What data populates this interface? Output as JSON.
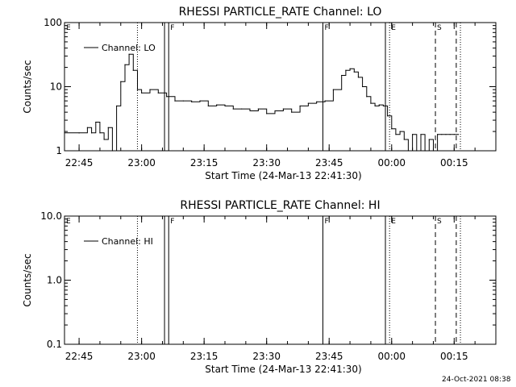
{
  "footer_date": "24-Oct-2021 08:38",
  "chart_data": [
    {
      "type": "line",
      "title": "RHESSI PARTICLE_RATE Channel: LO",
      "xlabel": "Start Time (24-Mar-13 22:41:30)",
      "ylabel": "Counts/sec",
      "yscale": "log",
      "ylim": [
        1,
        100
      ],
      "yticks": [
        "1",
        "10",
        "100"
      ],
      "xlim": [
        "22:41:30",
        "00:25:00"
      ],
      "xticks": [
        "22:45",
        "23:00",
        "23:15",
        "23:30",
        "23:45",
        "00:00",
        "00:15"
      ],
      "legend": {
        "label": "Channel: LO",
        "position": "top-left"
      },
      "flag_lines": [
        {
          "time": "22:41:30",
          "label": "E",
          "style": "solid"
        },
        {
          "time": "22:59:00",
          "label": "",
          "style": "dotted"
        },
        {
          "time": "23:05:30",
          "label": "",
          "style": "solid"
        },
        {
          "time": "23:06:30",
          "label": "F",
          "style": "solid"
        },
        {
          "time": "23:43:30",
          "label": "F",
          "style": "solid"
        },
        {
          "time": "23:58:30",
          "label": "",
          "style": "solid"
        },
        {
          "time": "23:59:30",
          "label": "E",
          "style": "dotted"
        },
        {
          "time": "00:10:30",
          "label": "S",
          "style": "dashed"
        },
        {
          "time": "00:15:30",
          "label": "",
          "style": "dashed"
        },
        {
          "time": "00:16:30",
          "label": "",
          "style": "dotted"
        }
      ],
      "series": [
        {
          "x": [
            "22:41:30",
            "22:45:00",
            "22:47:00",
            "22:48:00",
            "22:49:00",
            "22:50:00",
            "22:51:00",
            "22:52:00",
            "22:53:00",
            "22:54:00",
            "22:55:00",
            "22:56:00",
            "22:57:00",
            "22:58:00",
            "22:59:00",
            "23:00:00",
            "23:02:00",
            "23:04:00",
            "23:06:00",
            "23:08:00",
            "23:10:00",
            "23:12:00",
            "23:14:00",
            "23:16:00",
            "23:18:00",
            "23:20:00",
            "23:22:00",
            "23:24:00",
            "23:26:00",
            "23:28:00",
            "23:30:00",
            "23:32:00",
            "23:34:00",
            "23:36:00",
            "23:38:00",
            "23:40:00",
            "23:42:00",
            "23:44:00",
            "23:46:00",
            "23:48:00",
            "23:49:00",
            "23:50:00",
            "23:51:00",
            "23:52:00",
            "23:53:00",
            "23:54:00",
            "23:55:00",
            "23:56:00",
            "23:57:00",
            "23:58:00",
            "23:59:00",
            "00:00:00",
            "00:01:00",
            "00:02:00",
            "00:03:00",
            "00:04:00",
            "00:05:00",
            "00:06:00",
            "00:07:00",
            "00:08:00",
            "00:09:00",
            "00:10:00",
            "00:11:00",
            "00:12:00",
            "00:13:00",
            "00:14:00",
            "00:15:00",
            "00:16:00"
          ],
          "values": [
            1.9,
            1.9,
            2.3,
            1.9,
            2.8,
            1.9,
            1.5,
            2.3,
            1.0,
            5.0,
            12,
            22,
            32,
            18,
            9,
            8,
            9,
            8,
            7,
            6,
            6,
            5.8,
            6,
            5,
            5.2,
            5,
            4.5,
            4.5,
            4.2,
            4.5,
            3.8,
            4.2,
            4.5,
            4.0,
            5.0,
            5.5,
            5.8,
            6.0,
            9,
            15,
            18,
            19,
            17,
            14,
            10,
            7,
            5.5,
            5.0,
            5.2,
            5.0,
            3.5,
            2.2,
            1.8,
            2.0,
            1.5,
            1.0,
            1.8,
            1.0,
            1.8,
            1.0,
            1.5,
            1.0,
            1.8,
            1.8,
            1.8,
            1.8,
            1.8,
            1.8
          ]
        }
      ]
    },
    {
      "type": "line",
      "title": "RHESSI PARTICLE_RATE Channel: HI",
      "xlabel": "Start Time (24-Mar-13 22:41:30)",
      "ylabel": "Counts/sec",
      "yscale": "log",
      "ylim": [
        0.1,
        10
      ],
      "yticks": [
        "0.1",
        "1.0",
        "10.0"
      ],
      "xlim": [
        "22:41:30",
        "00:25:00"
      ],
      "xticks": [
        "22:45",
        "23:00",
        "23:15",
        "23:30",
        "23:45",
        "00:00",
        "00:15"
      ],
      "legend": {
        "label": "Channel: HI",
        "position": "top-left"
      },
      "flag_lines": [
        {
          "time": "22:41:30",
          "label": "E",
          "style": "solid"
        },
        {
          "time": "22:59:00",
          "label": "",
          "style": "dotted"
        },
        {
          "time": "23:05:30",
          "label": "",
          "style": "solid"
        },
        {
          "time": "23:06:30",
          "label": "F",
          "style": "solid"
        },
        {
          "time": "23:43:30",
          "label": "F",
          "style": "solid"
        },
        {
          "time": "23:58:30",
          "label": "",
          "style": "solid"
        },
        {
          "time": "23:59:30",
          "label": "E",
          "style": "dotted"
        },
        {
          "time": "00:10:30",
          "label": "S",
          "style": "dashed"
        },
        {
          "time": "00:15:30",
          "label": "",
          "style": "dashed"
        },
        {
          "time": "00:16:30",
          "label": "",
          "style": "dotted"
        }
      ],
      "series": []
    }
  ]
}
